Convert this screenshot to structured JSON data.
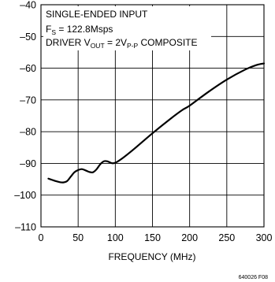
{
  "chart_data": {
    "type": "line",
    "xlabel": "FREQUENCY (MHz)",
    "ylabel": "",
    "xlim": [
      0,
      300
    ],
    "ylim": [
      -110,
      -40
    ],
    "x_ticks": [
      0,
      50,
      100,
      150,
      200,
      250,
      300
    ],
    "y_ticks": [
      -40,
      -50,
      -60,
      -70,
      -80,
      -90,
      -100,
      -110
    ],
    "grid": true,
    "annotation": {
      "line1": "SINGLE-ENDED INPUT",
      "line2_main": "F",
      "line2_sub": "S",
      "line2_rest": " = 122.8Msps",
      "line3_a": "DRIVER V",
      "line3_sub1": "OUT",
      "line3_b": " = 2V",
      "line3_sub2": "P-P",
      "line3_c": " COMPOSITE"
    },
    "series": [
      {
        "x": [
          10,
          15,
          20,
          25,
          30,
          35,
          40,
          45,
          50,
          55,
          60,
          65,
          70,
          75,
          80,
          85,
          90,
          95,
          100,
          110,
          125,
          150,
          175,
          190,
          200,
          225,
          250,
          275,
          290,
          300
        ],
        "y": [
          -94.8,
          -95.2,
          -95.6,
          -95.9,
          -96.0,
          -95.6,
          -94.2,
          -92.8,
          -92.1,
          -91.8,
          -92.2,
          -92.7,
          -92.8,
          -91.8,
          -90.2,
          -89.3,
          -89.4,
          -89.9,
          -89.8,
          -88.3,
          -85.5,
          -80.5,
          -75.8,
          -73.2,
          -71.8,
          -67.5,
          -63.6,
          -60.4,
          -59.0,
          -58.5
        ]
      }
    ]
  },
  "figure_id": "640026 F08"
}
